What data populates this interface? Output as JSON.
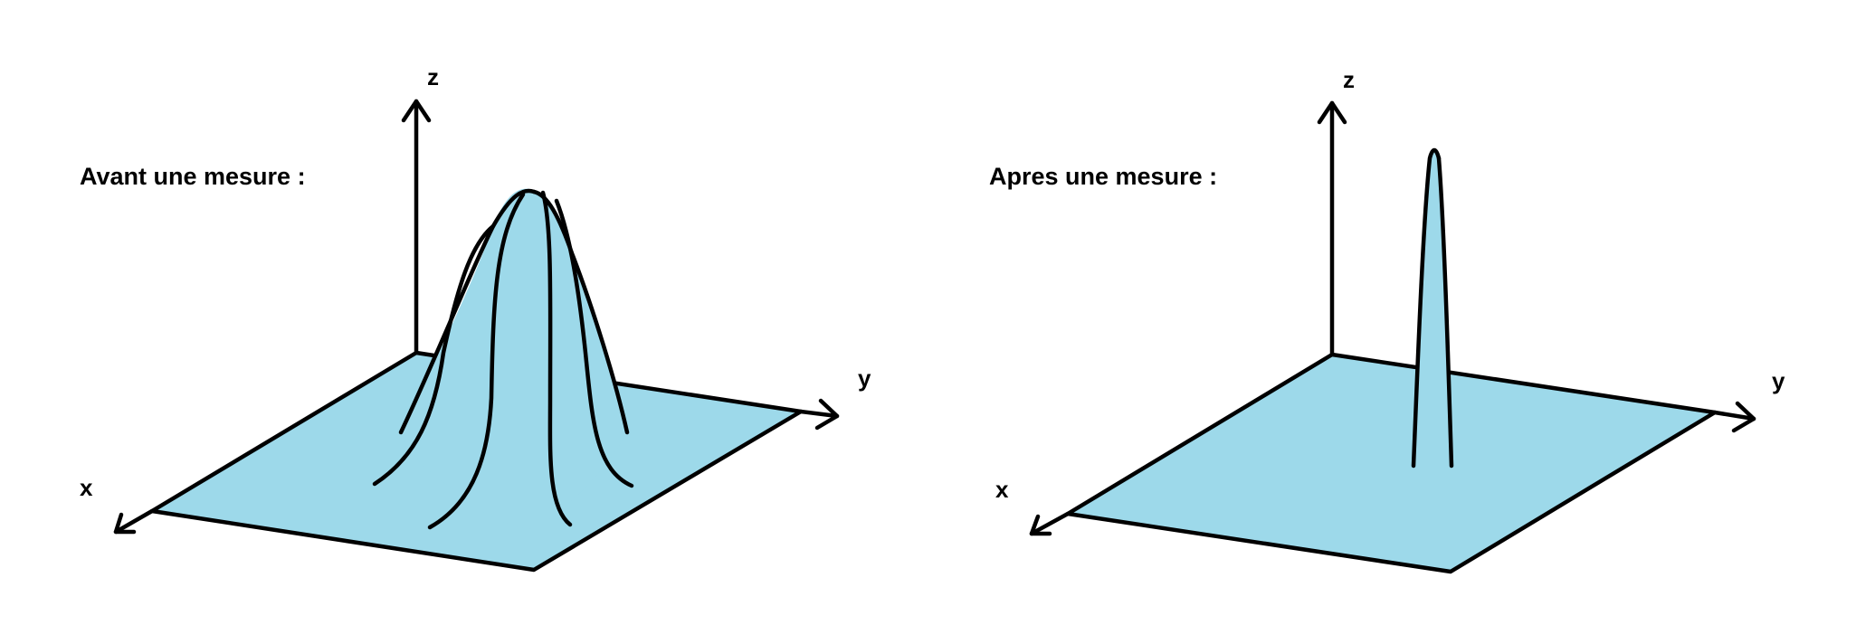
{
  "colors": {
    "surface_fill": "#9dd9ea",
    "line": "#000000",
    "background": "#ffffff"
  },
  "panels": [
    {
      "caption": "Avant une mesure :",
      "axes": {
        "x": "x",
        "y": "y",
        "z": "z"
      },
      "shape": "wide-bell"
    },
    {
      "caption": "Apres une mesure :",
      "axes": {
        "x": "x",
        "y": "y",
        "z": "z"
      },
      "shape": "narrow-spike"
    }
  ]
}
